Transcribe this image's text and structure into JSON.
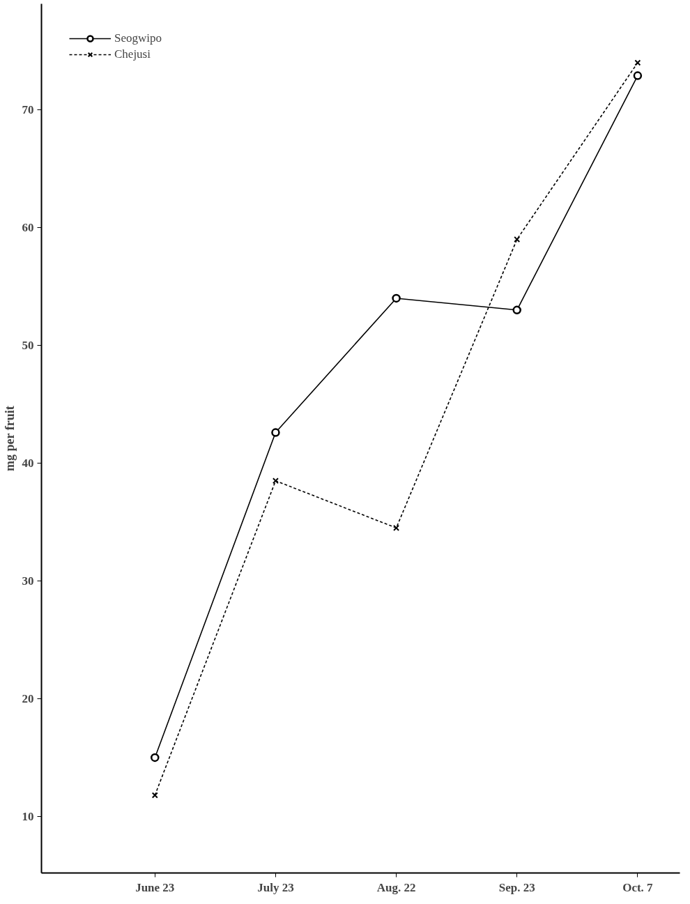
{
  "chart_data": {
    "type": "line",
    "ylabel": "mg per fruit",
    "categories": [
      "June 23",
      "July 23",
      "Aug. 22",
      "Sep. 23",
      "Oct. 7"
    ],
    "ylim": [
      5.2,
      79
    ],
    "yticks": [
      10,
      20,
      30,
      40,
      50,
      60,
      70
    ],
    "grid": false,
    "legend": "top left",
    "series": [
      {
        "name": "Seogwipo",
        "color": "#000000",
        "marker": "circle",
        "line_style": "solid",
        "values": [
          15.0,
          42.6,
          54.0,
          53.0,
          72.9
        ]
      },
      {
        "name": "Chejusi",
        "color": "#000000",
        "marker": "cross",
        "line_style": "dashed",
        "values": [
          11.8,
          38.5,
          34.5,
          59.0,
          74.0
        ]
      }
    ]
  }
}
